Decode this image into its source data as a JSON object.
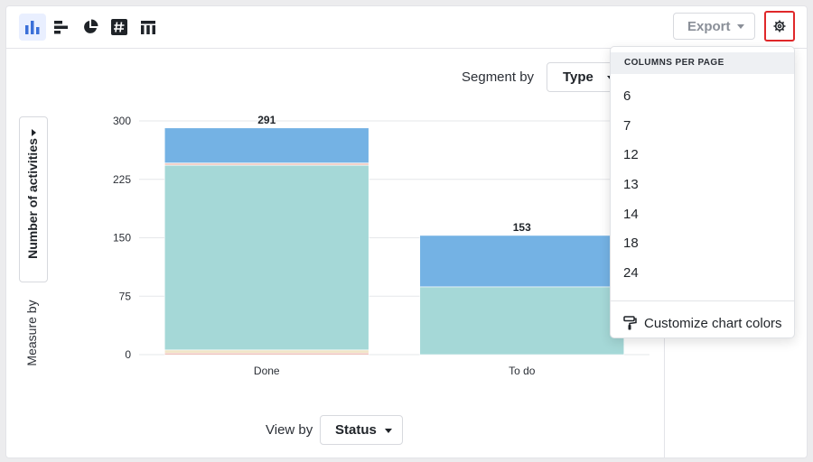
{
  "toolbar": {
    "chart_types": [
      {
        "icon": "vertical-bar-chart-icon",
        "active": true
      },
      {
        "icon": "horizontal-bar-chart-icon",
        "active": false
      },
      {
        "icon": "pie-chart-icon",
        "active": false
      },
      {
        "icon": "number-chart-icon",
        "active": false
      },
      {
        "icon": "table-chart-icon",
        "active": false
      }
    ],
    "export_label": "Export",
    "settings_icon": "gear-icon"
  },
  "controls": {
    "segment_by_label": "Segment by",
    "segment_by_value": "Type",
    "measure_by_label": "Measure by",
    "measure_by_value": "Number of activities",
    "view_by_label": "View by",
    "view_by_value": "Status"
  },
  "dropdown": {
    "header": "COLUMNS PER PAGE",
    "options": [
      "6",
      "7",
      "12",
      "13",
      "14",
      "18",
      "24"
    ],
    "customize_label": "Customize chart colors",
    "customize_icon": "paint-roller-icon"
  },
  "chart_data": {
    "type": "bar",
    "stacked": true,
    "categories": [
      "Done",
      "To do"
    ],
    "totals": [
      "291",
      "153"
    ],
    "y_ticks": [
      "0",
      "75",
      "150",
      "225",
      "300"
    ],
    "ylim": [
      0,
      300
    ],
    "grid": true,
    "series": [
      {
        "color": "#e8a79c",
        "values": [
          2,
          0
        ]
      },
      {
        "color": "#f1e6c8",
        "values": [
          4,
          0
        ]
      },
      {
        "color": "#a5d8d7",
        "values": [
          237,
          87
        ]
      },
      {
        "color": "#f3cfc6",
        "values": [
          3,
          0
        ]
      },
      {
        "color": "#74b2e4",
        "values": [
          45,
          66
        ]
      }
    ]
  },
  "colors": {
    "accent": "#3a6fd8",
    "highlight_border": "#e0282a"
  }
}
